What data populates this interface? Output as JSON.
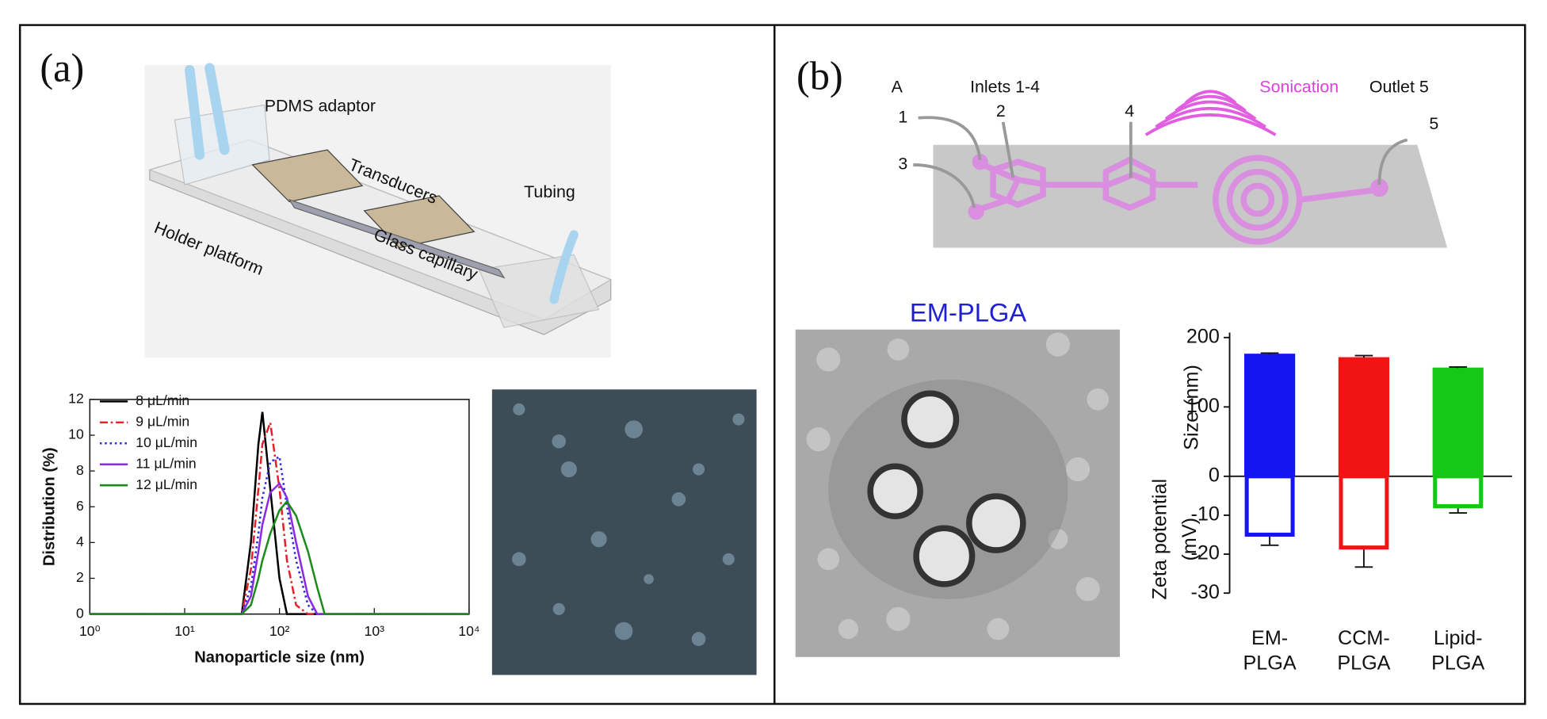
{
  "panel_a": {
    "label": "(a)",
    "device_labels": [
      "PDMS adaptor",
      "Transducers",
      "Tubing",
      "Holder platform",
      "Glass capillary"
    ]
  },
  "panel_b": {
    "label": "(b)",
    "diagram_labels": [
      "A",
      "Inlets 1-4",
      "Sonication",
      "Outlet 5",
      "1",
      "2",
      "3",
      "4",
      "5"
    ],
    "image_title": "EM-PLGA"
  },
  "chart_data": [
    {
      "type": "line",
      "xlabel": "Nanoparticle size (nm)",
      "ylabel": "Distribution (%)",
      "xscale": "log",
      "x": [
        1,
        10,
        40,
        50,
        60,
        66,
        80,
        100,
        120,
        150,
        200,
        250,
        300,
        1000,
        10000
      ],
      "xlim": [
        1,
        10000
      ],
      "xticks": [
        {
          "value": 1,
          "label": "10⁰"
        },
        {
          "value": 10,
          "label": "10¹"
        },
        {
          "value": 100,
          "label": "10²"
        },
        {
          "value": 1000,
          "label": "10³"
        },
        {
          "value": 10000,
          "label": "10⁴"
        }
      ],
      "ylim": [
        0,
        12
      ],
      "yticks": [
        0,
        2,
        4,
        6,
        8,
        10,
        12
      ],
      "legend": "upper left",
      "series": [
        {
          "name": "8 μL/min",
          "color": "#000000",
          "linestyle": "solid",
          "values": [
            0,
            0,
            0,
            4,
            9.5,
            11.3,
            7,
            2,
            0,
            0,
            0,
            0,
            0,
            0,
            0
          ]
        },
        {
          "name": "9 μL/min",
          "color": "#e8202a",
          "linestyle": "dashdot",
          "values": [
            0,
            0,
            0,
            2.5,
            7,
            9.5,
            10.7,
            7,
            3,
            0.5,
            0,
            0,
            0,
            0,
            0
          ]
        },
        {
          "name": "10 μL/min",
          "color": "#2a2ad8",
          "linestyle": "dotted",
          "values": [
            0,
            0,
            0,
            1.5,
            4.5,
            6.5,
            8.5,
            8.8,
            6,
            3,
            0.5,
            0,
            0,
            0,
            0
          ]
        },
        {
          "name": "11 μL/min",
          "color": "#8a2be2",
          "linestyle": "solid",
          "values": [
            0,
            0,
            0,
            1,
            3.5,
            5,
            6.8,
            7.3,
            6.5,
            4,
            1,
            0,
            0,
            0,
            0
          ]
        },
        {
          "name": "12 μL/min",
          "color": "#1a8c1a",
          "linestyle": "solid",
          "values": [
            0,
            0,
            0,
            0.5,
            2,
            3,
            4.5,
            5.8,
            6.3,
            5.5,
            3.5,
            1.5,
            0,
            0,
            0
          ]
        }
      ]
    },
    {
      "type": "bar",
      "categories": [
        [
          "EM-",
          "PLGA"
        ],
        [
          "CCM-",
          "PLGA"
        ],
        [
          "Lipid-",
          "PLGA"
        ]
      ],
      "colors": [
        "#1515f0",
        "#f01515",
        "#15c815"
      ],
      "ylabel": "Size (nm)",
      "y2label": [
        "Zeta potential",
        "(mV)"
      ],
      "ylim": [
        0,
        200
      ],
      "yticks": [
        0,
        100,
        200
      ],
      "y2lim": [
        -30,
        0
      ],
      "y2ticks": [
        -30,
        -20,
        -10
      ],
      "series": [
        {
          "name": "Size",
          "axis": "y",
          "values": [
            176,
            171,
            156
          ],
          "errors": [
            1.5,
            3,
            1.5
          ]
        },
        {
          "name": "Zeta potential",
          "axis": "y2",
          "values": [
            -15.5,
            -18.8,
            -8.2
          ],
          "errors": [
            2.2,
            4.5,
            1.2
          ]
        }
      ]
    }
  ]
}
